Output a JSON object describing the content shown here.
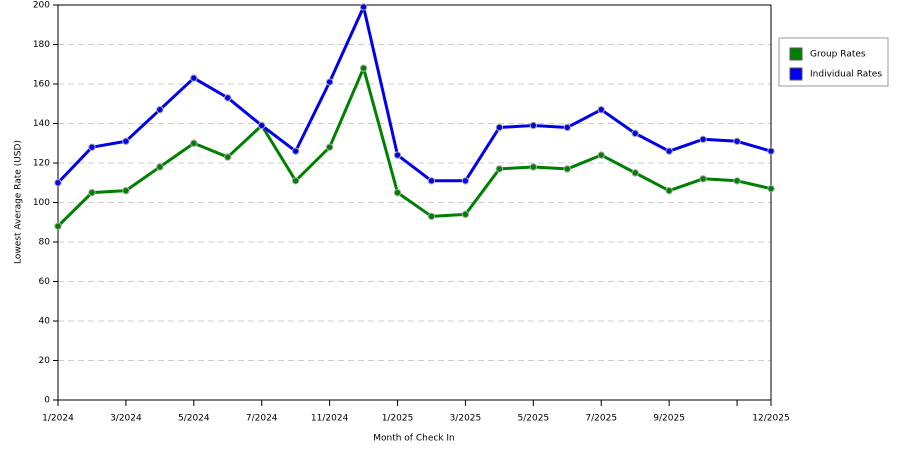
{
  "chart_data": {
    "type": "line",
    "x_label": "Month of Check In",
    "y_label": "Lowest Average Rate (USD)",
    "categories": [
      "1/2024",
      null,
      "3/2024",
      null,
      "5/2024",
      null,
      "7/2024",
      null,
      "11/2024",
      null,
      "1/2025",
      null,
      "3/2025",
      null,
      "5/2025",
      null,
      "7/2025",
      null,
      "9/2025",
      null,
      null,
      "12/2025"
    ],
    "series": [
      {
        "name": "Group Rates",
        "color": "#008000",
        "values": [
          88,
          105,
          106,
          118,
          130,
          123,
          139,
          111,
          128,
          168,
          105,
          93,
          94,
          117,
          118,
          117,
          124,
          115,
          106,
          112,
          111,
          107
        ]
      },
      {
        "name": "Individual Rates",
        "color": "#0000ee",
        "values": [
          110,
          128,
          131,
          147,
          163,
          153,
          139,
          126,
          161,
          199,
          124,
          111,
          111,
          138,
          139,
          138,
          147,
          135,
          126,
          132,
          131,
          126
        ]
      }
    ],
    "ylim": [
      0,
      200
    ],
    "yticks": [
      0,
      20,
      40,
      60,
      80,
      100,
      120,
      140,
      160,
      180,
      200
    ],
    "grid": true,
    "legend": "right"
  }
}
